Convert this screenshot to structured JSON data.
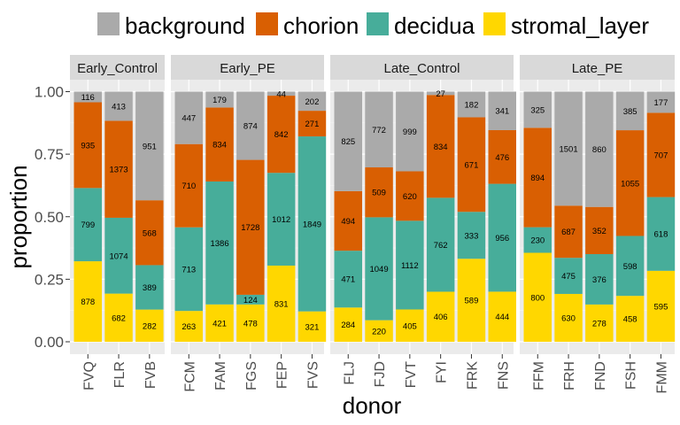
{
  "chart_data": {
    "type": "bar",
    "stacked": "proportion",
    "xlabel": "donor",
    "ylabel": "proportion",
    "ylim": [
      0,
      1
    ],
    "y_ticks": [
      "0.00",
      "0.25",
      "0.50",
      "0.75",
      "1.00"
    ],
    "y_tick_values": [
      0,
      0.25,
      0.5,
      0.75,
      1.0
    ],
    "legend_position": "top",
    "series": [
      {
        "name": "background",
        "color": "#AAAAAA"
      },
      {
        "name": "chorion",
        "color": "#D95F02"
      },
      {
        "name": "decidua",
        "color": "#47AD9A"
      },
      {
        "name": "stromal_layer",
        "color": "#FFD700"
      }
    ],
    "panels": [
      {
        "name": "Early_Control",
        "donors": [
          {
            "id": "FVQ",
            "stromal_layer": 878,
            "decidua": 799,
            "chorion": 935,
            "background": 116
          },
          {
            "id": "FLR",
            "stromal_layer": 682,
            "decidua": 1074,
            "chorion": 1373,
            "background": 413
          },
          {
            "id": "FVB",
            "stromal_layer": 282,
            "decidua": 389,
            "chorion": 568,
            "background": 951
          }
        ]
      },
      {
        "name": "Early_PE",
        "donors": [
          {
            "id": "FCM",
            "stromal_layer": 263,
            "decidua": 713,
            "chorion": 710,
            "background": 447
          },
          {
            "id": "FAM",
            "stromal_layer": 421,
            "decidua": 1386,
            "chorion": 834,
            "background": 179
          },
          {
            "id": "FGS",
            "stromal_layer": 478,
            "decidua": 124,
            "chorion": 1728,
            "background": 874
          },
          {
            "id": "FEP",
            "stromal_layer": 831,
            "decidua": 1012,
            "chorion": 842,
            "background": 44
          },
          {
            "id": "FVS",
            "stromal_layer": 321,
            "decidua": 1849,
            "chorion": 271,
            "background": 202
          }
        ]
      },
      {
        "name": "Late_Control",
        "donors": [
          {
            "id": "FLJ",
            "stromal_layer": 284,
            "decidua": 471,
            "chorion": 494,
            "background": 825
          },
          {
            "id": "FJD",
            "stromal_layer": 220,
            "decidua": 1049,
            "chorion": 509,
            "background": 772
          },
          {
            "id": "FVT",
            "stromal_layer": 405,
            "decidua": 1112,
            "chorion": 620,
            "background": 999
          },
          {
            "id": "FYI",
            "stromal_layer": 406,
            "decidua": 762,
            "chorion": 834,
            "background": 27
          },
          {
            "id": "FRK",
            "stromal_layer": 589,
            "decidua": 333,
            "chorion": 671,
            "background": 182
          },
          {
            "id": "FNS",
            "stromal_layer": 444,
            "decidua": 956,
            "chorion": 476,
            "background": 341
          }
        ]
      },
      {
        "name": "Late_PE",
        "donors": [
          {
            "id": "FFM",
            "stromal_layer": 800,
            "decidua": 230,
            "chorion": 894,
            "background": 325
          },
          {
            "id": "FRH",
            "stromal_layer": 630,
            "decidua": 475,
            "chorion": 687,
            "background": 1501
          },
          {
            "id": "FND",
            "stromal_layer": 278,
            "decidua": 376,
            "chorion": 352,
            "background": 860
          },
          {
            "id": "FSH",
            "stromal_layer": 458,
            "decidua": 598,
            "chorion": 1055,
            "background": 385
          },
          {
            "id": "FMM",
            "stromal_layer": 595,
            "decidua": 618,
            "chorion": 707,
            "background": 177
          }
        ]
      }
    ],
    "grid": true,
    "panel_background": "#EBEBEB",
    "strip_background": "#D9D9D9"
  }
}
